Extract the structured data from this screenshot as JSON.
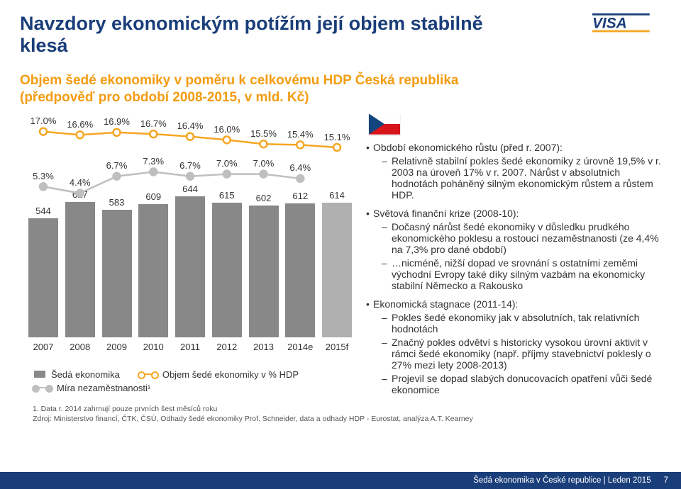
{
  "title": "Navzdory ekonomickým potížím její objem stabilně klesá",
  "subtitle_l1": "Objem šedé ekonomiky v poměru k celkovému HDP Česká republika",
  "subtitle_l2": "(předpověď pro období 2008-2015, v mld. Kč)",
  "chart": {
    "type": "bar+line",
    "years": [
      "2007",
      "2008",
      "2009",
      "2010",
      "2011",
      "2012",
      "2013",
      "2014e",
      "2015f"
    ],
    "bars": {
      "label": "Šedá ekonomika",
      "values": [
        544,
        617,
        583,
        609,
        644,
        615,
        602,
        612,
        614
      ],
      "max": 680,
      "color": "#888888",
      "last_color": "#b0b0b0"
    },
    "line1": {
      "label": "Objem šedé ekonomiky v % HDP",
      "values": [
        17.0,
        16.6,
        16.9,
        16.7,
        16.4,
        16.0,
        15.5,
        15.4,
        15.1
      ],
      "labels": [
        "17.0%",
        "16.6%",
        "16.9%",
        "16.7%",
        "16.4%",
        "16.0%",
        "15.5%",
        "15.4%",
        "15.1%"
      ],
      "min": 14.5,
      "max": 18.5,
      "color": "#f5a623",
      "marker_fill": "#ffffff",
      "marker_stroke": "#f5a623"
    },
    "line2": {
      "label": "Míra nezaměstnanosti¹",
      "values": [
        5.3,
        4.4,
        6.7,
        7.3,
        6.7,
        7.0,
        7.0,
        6.4,
        null
      ],
      "labels": [
        "5.3%",
        "4.4%",
        "6.7%",
        "7.3%",
        "6.7%",
        "7.0%",
        "7.0%",
        "6.4%",
        ""
      ],
      "min": 3.5,
      "max": 8.5,
      "color": "#bfbfbf",
      "marker_fill": "#bfbfbf",
      "marker_stroke": "#bfbfbf"
    }
  },
  "footnote1": "1.   Data r. 2014 zahrnují pouze prvních šest měsíců roku",
  "footnote2": "Zdroj: Ministerstvo financí, ČTK, ČSÚ, Odhady šedé ekonomiky Prof. Schneider, data a odhady HDP - Eurostat, analýza A.T. Kearney",
  "right": {
    "b1": {
      "head": "Období ekonomického růstu (před r. 2007):",
      "s1": "Relativně stabilní pokles šedé ekonomiky z úrovně 19,5% v r. 2003 na úroveň 17% v r. 2007. Nárůst v absolutních hodnotách poháněný silným ekonomickým růstem a růstem HDP."
    },
    "b2": {
      "head": "Světová finanční krize (2008-10):",
      "s1": "Dočasný nárůst šedé ekonomiky v důsledku prudkého ekonomického poklesu a rostoucí nezaměstnanosti (ze 4,4% na 7,3% pro dané období)",
      "s2": "…nicméně, nižší dopad ve srovnání s ostatními zeměmi východní Evropy také díky silným vazbám na ekonomicky stabilní Německo a Rakousko"
    },
    "b3": {
      "head": "Ekonomická stagnace (2011-14):",
      "s1": "Pokles šedé ekonomiky jak v absolutních, tak relativních hodnotách",
      "s2": "Značný pokles odvětví s historicky vysokou úrovní aktivit v rámci šedé ekonomiky (např. příjmy stavebnictví poklesly o 27% mezi lety 2008-2013)",
      "s3": "Projevil se dopad slabých donucovacích opatření vůči šedé ekonomice"
    }
  },
  "footer": {
    "text": "Šedá ekonomika v České republice | Leden 2015",
    "page": "7"
  },
  "colors": {
    "title": "#1a3e7a",
    "subtitle": "#f39c12",
    "bg": "#ffffff"
  }
}
